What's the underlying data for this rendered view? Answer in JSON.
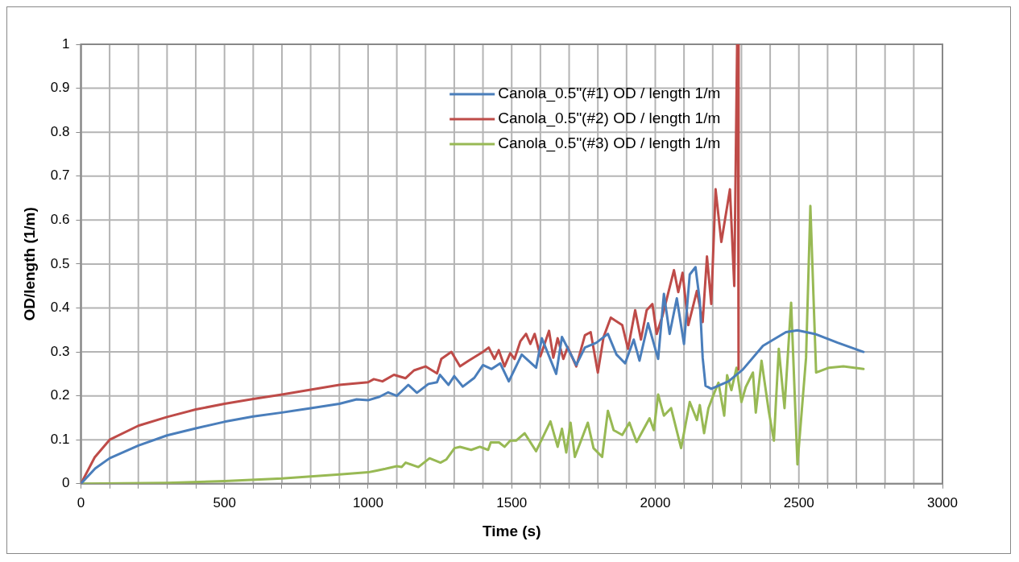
{
  "chart_data": {
    "type": "line",
    "xlabel": "Time (s)",
    "ylabel": "OD/length (1/m)",
    "xlim": [
      0,
      3000
    ],
    "ylim": [
      0,
      1
    ],
    "xticks": [
      0,
      {
        "value": 100,
        "label": null
      },
      {
        "value": 200,
        "label": null
      },
      {
        "value": 300,
        "label": null
      },
      {
        "value": 400,
        "label": null
      },
      500,
      {
        "value": 600,
        "label": null
      },
      {
        "value": 700,
        "label": null
      },
      {
        "value": 800,
        "label": null
      },
      {
        "value": 900,
        "label": null
      },
      1000,
      {
        "value": 1100,
        "label": null
      },
      {
        "value": 1200,
        "label": null
      },
      {
        "value": 1300,
        "label": null
      },
      {
        "value": 1400,
        "label": null
      },
      1500,
      {
        "value": 1600,
        "label": null
      },
      {
        "value": 1700,
        "label": null
      },
      {
        "value": 1800,
        "label": null
      },
      {
        "value": 1900,
        "label": null
      },
      2000,
      {
        "value": 2100,
        "label": null
      },
      {
        "value": 2200,
        "label": null
      },
      {
        "value": 2300,
        "label": null
      },
      {
        "value": 2400,
        "label": null
      },
      2500,
      {
        "value": 2600,
        "label": null
      },
      {
        "value": 2700,
        "label": null
      },
      {
        "value": 2800,
        "label": null
      },
      {
        "value": 2900,
        "label": null
      },
      3000
    ],
    "yticks": [
      0,
      0.1,
      0.2,
      0.3,
      0.4,
      0.5,
      0.6,
      0.7,
      0.8,
      0.9,
      1
    ],
    "grid": true,
    "legend": "top",
    "marker": "none",
    "line_style": "solid",
    "series": [
      {
        "name": "Canola_0.5\"(#1) OD / length 1/m",
        "color": "#4a7ebb",
        "x": [
          0,
          50,
          100,
          200,
          300,
          400,
          500,
          600,
          700,
          800,
          900,
          960,
          1000,
          1040,
          1070,
          1100,
          1140,
          1170,
          1210,
          1240,
          1250,
          1280,
          1300,
          1330,
          1370,
          1400,
          1430,
          1460,
          1490,
          1535,
          1585,
          1605,
          1655,
          1675,
          1725,
          1755,
          1795,
          1835,
          1865,
          1895,
          1925,
          1945,
          1975,
          2010,
          2030,
          2050,
          2075,
          2100,
          2120,
          2140,
          2155,
          2165,
          2175,
          2195,
          2255,
          2305,
          2375,
          2455,
          2495,
          2555,
          2635,
          2725
        ],
        "values": [
          0,
          0.035,
          0.058,
          0.087,
          0.11,
          0.126,
          0.141,
          0.153,
          0.162,
          0.172,
          0.182,
          0.192,
          0.19,
          0.198,
          0.208,
          0.2,
          0.225,
          0.207,
          0.227,
          0.231,
          0.248,
          0.225,
          0.245,
          0.221,
          0.241,
          0.27,
          0.261,
          0.274,
          0.233,
          0.294,
          0.264,
          0.331,
          0.25,
          0.334,
          0.27,
          0.31,
          0.321,
          0.341,
          0.294,
          0.274,
          0.328,
          0.28,
          0.365,
          0.284,
          0.432,
          0.341,
          0.422,
          0.318,
          0.476,
          0.493,
          0.416,
          0.287,
          0.223,
          0.216,
          0.233,
          0.26,
          0.314,
          0.345,
          0.349,
          0.341,
          0.321,
          0.3
        ]
      },
      {
        "name": "Canola_0.5\"(#2) OD / length 1/m",
        "color": "#be4b48",
        "x": [
          0,
          48,
          100,
          200,
          300,
          400,
          500,
          600,
          700,
          800,
          900,
          1000,
          1020,
          1050,
          1090,
          1130,
          1160,
          1200,
          1240,
          1255,
          1290,
          1320,
          1350,
          1400,
          1420,
          1440,
          1455,
          1475,
          1495,
          1510,
          1530,
          1550,
          1565,
          1580,
          1600,
          1630,
          1645,
          1660,
          1680,
          1695,
          1725,
          1755,
          1775,
          1800,
          1820,
          1845,
          1885,
          1905,
          1930,
          1950,
          1970,
          1990,
          2005,
          2025,
          2065,
          2080,
          2095,
          2115,
          2145,
          2165,
          2180,
          2195,
          2210,
          2230,
          2260,
          2275,
          2285,
          2288,
          2290
        ],
        "values": [
          0,
          0.06,
          0.1,
          0.132,
          0.152,
          0.169,
          0.182,
          0.193,
          0.203,
          0.214,
          0.225,
          0.231,
          0.238,
          0.233,
          0.248,
          0.24,
          0.258,
          0.267,
          0.251,
          0.284,
          0.3,
          0.267,
          0.28,
          0.3,
          0.31,
          0.284,
          0.304,
          0.267,
          0.297,
          0.284,
          0.324,
          0.341,
          0.318,
          0.341,
          0.29,
          0.348,
          0.287,
          0.331,
          0.284,
          0.311,
          0.267,
          0.338,
          0.345,
          0.253,
          0.334,
          0.378,
          0.361,
          0.307,
          0.395,
          0.328,
          0.395,
          0.409,
          0.341,
          0.382,
          0.486,
          0.436,
          0.48,
          0.361,
          0.439,
          0.368,
          0.517,
          0.409,
          0.67,
          0.55,
          0.67,
          0.45,
          1,
          1,
          0.26
        ]
      },
      {
        "name": "Canola_0.5\"(#3) OD / length 1/m",
        "color": "#98b954",
        "x": [
          0,
          300,
          500,
          700,
          900,
          1000,
          1030,
          1060,
          1100,
          1117,
          1131,
          1175,
          1214,
          1252,
          1272,
          1301,
          1320,
          1359,
          1389,
          1418,
          1427,
          1456,
          1475,
          1495,
          1515,
          1545,
          1585,
          1635,
          1660,
          1675,
          1690,
          1705,
          1720,
          1765,
          1785,
          1815,
          1835,
          1855,
          1885,
          1910,
          1935,
          1980,
          1995,
          2010,
          2030,
          2055,
          2090,
          2120,
          2145,
          2155,
          2170,
          2185,
          2205,
          2220,
          2240,
          2250,
          2265,
          2283,
          2300,
          2315,
          2340,
          2350,
          2370,
          2395,
          2413,
          2430,
          2450,
          2473,
          2495,
          2525,
          2540,
          2560,
          2605,
          2655,
          2725
        ],
        "values": [
          0,
          0.002,
          0.006,
          0.012,
          0.021,
          0.026,
          0.03,
          0.034,
          0.04,
          0.038,
          0.048,
          0.038,
          0.058,
          0.048,
          0.055,
          0.081,
          0.084,
          0.077,
          0.084,
          0.077,
          0.094,
          0.094,
          0.084,
          0.098,
          0.098,
          0.115,
          0.074,
          0.142,
          0.084,
          0.125,
          0.071,
          0.139,
          0.061,
          0.139,
          0.081,
          0.061,
          0.166,
          0.122,
          0.111,
          0.139,
          0.095,
          0.149,
          0.122,
          0.203,
          0.155,
          0.172,
          0.081,
          0.186,
          0.145,
          0.179,
          0.115,
          0.172,
          0.206,
          0.23,
          0.155,
          0.247,
          0.213,
          0.264,
          0.186,
          0.22,
          0.253,
          0.162,
          0.28,
          0.166,
          0.098,
          0.307,
          0.172,
          0.412,
          0.044,
          0.287,
          0.632,
          0.253,
          0.264,
          0.267,
          0.261
        ]
      }
    ]
  }
}
